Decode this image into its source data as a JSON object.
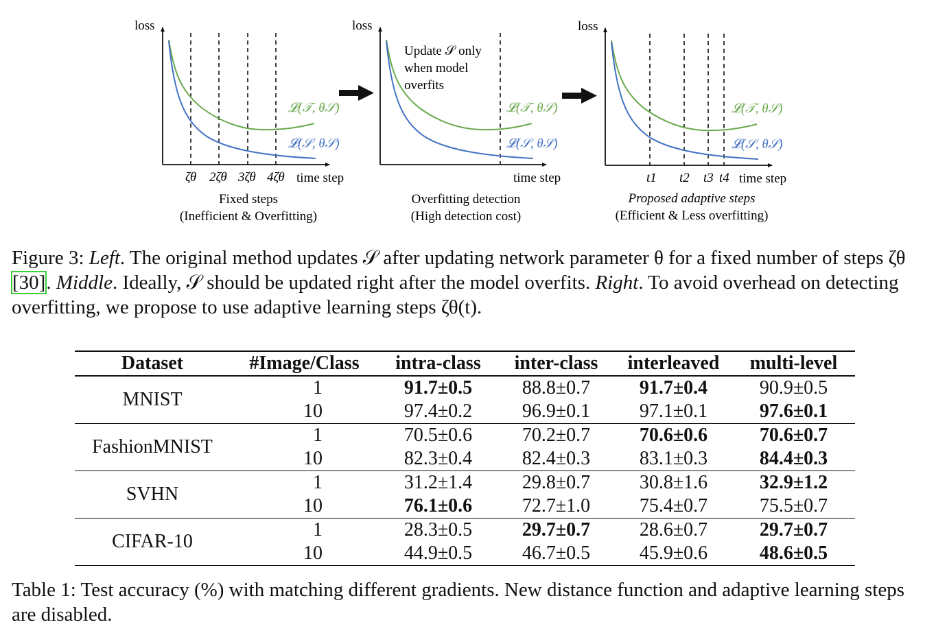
{
  "panels": [
    {
      "y_label": "loss",
      "x_label": "time step",
      "ticks": [
        "ζθ",
        "2ζθ",
        "3ζθ",
        "4ζθ"
      ],
      "series": [
        {
          "label": "𝓛(𝒯, θ𝒮)",
          "color": "#6aaa4e"
        },
        {
          "label": "𝓛(𝒮, θ𝒮)",
          "color": "#4472c4"
        }
      ],
      "caption_line1": "Fixed steps",
      "caption_line2": "(Inefficient & Overfitting)"
    },
    {
      "y_label": "loss",
      "x_label": "time step",
      "note": [
        "Update 𝒮 only",
        "when model",
        "overfits"
      ],
      "series": [
        {
          "label": "𝓛(𝒯, θ𝒮)",
          "color": "#6aaa4e"
        },
        {
          "label": "𝓛(𝒮, θ𝒮)",
          "color": "#4472c4"
        }
      ],
      "caption_line1": "Overfitting detection",
      "caption_line2": "(High detection cost)"
    },
    {
      "y_label": "loss",
      "x_label": "time step",
      "ticks": [
        "t1",
        "t2",
        "t3",
        "t4"
      ],
      "series": [
        {
          "label": "𝓛(𝒯, θ𝒮)",
          "color": "#6aaa4e"
        },
        {
          "label": "𝓛(𝒮, θ𝒮)",
          "color": "#4472c4"
        }
      ],
      "caption_line1": "Proposed adaptive steps",
      "caption_line2": "(Efficient & Less overfitting)"
    }
  ],
  "figure_caption": {
    "prefix": "Figure 3: ",
    "left": "Left",
    "p1": ". The original method updates 𝒮 after updating network parameter θ for a fixed number of steps ζθ ",
    "ref": "[30]",
    "p2": ". ",
    "middle": "Middle",
    "p3": ". Ideally, 𝒮 should be updated right after the model overfits. ",
    "right": "Right",
    "p4": ". To avoid overhead on detecting overfitting, we propose to use adaptive learning steps ζθ(t)."
  },
  "table": {
    "headers": [
      "Dataset",
      "#Image/Class",
      "intra-class",
      "inter-class",
      "interleaved",
      "multi-level"
    ],
    "groups": [
      {
        "dataset": "MNIST",
        "rows": [
          {
            "ipc": "1",
            "cells": [
              "91.7±0.5",
              "88.8±0.7",
              "91.7±0.4",
              "90.9±0.5"
            ],
            "bold": [
              true,
              false,
              true,
              false
            ]
          },
          {
            "ipc": "10",
            "cells": [
              "97.4±0.2",
              "96.9±0.1",
              "97.1±0.1",
              "97.6±0.1"
            ],
            "bold": [
              false,
              false,
              false,
              true
            ]
          }
        ]
      },
      {
        "dataset": "FashionMNIST",
        "rows": [
          {
            "ipc": "1",
            "cells": [
              "70.5±0.6",
              "70.2±0.7",
              "70.6±0.6",
              "70.6±0.7"
            ],
            "bold": [
              false,
              false,
              true,
              true
            ]
          },
          {
            "ipc": "10",
            "cells": [
              "82.3±0.4",
              "82.4±0.3",
              "83.1±0.3",
              "84.4±0.3"
            ],
            "bold": [
              false,
              false,
              false,
              true
            ]
          }
        ]
      },
      {
        "dataset": "SVHN",
        "rows": [
          {
            "ipc": "1",
            "cells": [
              "31.2±1.4",
              "29.8±0.7",
              "30.8±1.6",
              "32.9±1.2"
            ],
            "bold": [
              false,
              false,
              false,
              true
            ]
          },
          {
            "ipc": "10",
            "cells": [
              "76.1±0.6",
              "72.7±1.0",
              "75.4±0.7",
              "75.5±0.7"
            ],
            "bold": [
              true,
              false,
              false,
              false
            ]
          }
        ]
      },
      {
        "dataset": "CIFAR-10",
        "rows": [
          {
            "ipc": "1",
            "cells": [
              "28.3±0.5",
              "29.7±0.7",
              "28.6±0.7",
              "29.7±0.7"
            ],
            "bold": [
              false,
              true,
              false,
              true
            ]
          },
          {
            "ipc": "10",
            "cells": [
              "44.9±0.5",
              "46.7±0.5",
              "45.9±0.6",
              "48.6±0.5"
            ],
            "bold": [
              false,
              false,
              false,
              true
            ]
          }
        ]
      }
    ]
  },
  "table_caption": "Table 1: Test accuracy (%) with matching different gradients. New distance function and adaptive learning steps are disabled.",
  "colors": {
    "train_curve": "#6aaa4e",
    "syn_curve": "#4472c4",
    "ref_box": "#3ccf3c"
  }
}
